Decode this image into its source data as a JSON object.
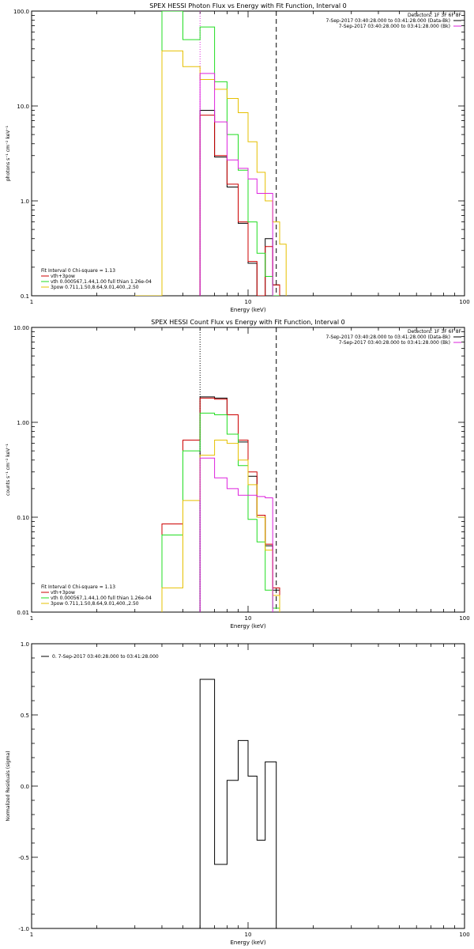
{
  "colors": {
    "black": "#000000",
    "red": "#cc0000",
    "green": "#22dd22",
    "gold": "#e6c000",
    "magenta": "#dd22dd"
  },
  "chart_data": [
    {
      "type": "line",
      "step": true,
      "title": "SPEX HESSI Photon Flux vs Energy with Fit Function, Interval 0",
      "xlabel": "Energy (keV)",
      "ylabel": "photons s⁻¹ cm⁻² keV⁻¹",
      "xscale": "log",
      "yscale": "log",
      "xlim": [
        1,
        100
      ],
      "ylim": [
        0.1,
        100
      ],
      "xtick_labels": [
        {
          "v": 1,
          "t": "1"
        },
        {
          "v": 10,
          "t": "10"
        },
        {
          "v": 100,
          "t": "100"
        }
      ],
      "ytick_labels": [
        {
          "v": 0.1,
          "t": "0.1"
        },
        {
          "v": 1,
          "t": "1.0"
        },
        {
          "v": 10,
          "t": "10.0"
        },
        {
          "v": 100,
          "t": "100.0"
        }
      ],
      "edges": [
        4.0,
        5.0,
        6.0,
        7.0,
        8.0,
        9.0,
        10.0,
        11.0,
        12.0,
        13.0,
        14.0,
        15.0
      ],
      "vlines": [
        {
          "x": 6.0,
          "style": "dotted",
          "color": "magenta"
        },
        {
          "x": 13.5,
          "style": "dashed",
          "color": "black"
        }
      ],
      "legend_tr": {
        "lines": [
          "Detectors: 1F 3F 6F 8F",
          "7-Sep-2017 03:40:28.000 to 03:41:28.000 (Data-Bk)",
          "7-Sep-2017 03:40:28.000 to 03:41:28.000 (Bk)"
        ],
        "marks": [
          null,
          "black",
          "magenta"
        ]
      },
      "legend_bl": {
        "header": "Fit Interval 0   Chi-square = 1.13",
        "lines": [
          "vth+3pow",
          "vth 0.000567,1.44,1.00  full thian 1.26e-04",
          "3pow 0.711,1.50,8.64,9.01,400.,2.50"
        ],
        "marks": [
          "red",
          "green",
          "gold"
        ]
      },
      "series": [
        {
          "color": "black",
          "start": 6.0,
          "values": [
            9.0,
            2.9,
            1.4,
            0.58,
            0.22,
            0.08,
            0.4,
            0.13
          ]
        },
        {
          "name": "vth+3pow",
          "color": "red",
          "start": 6.0,
          "values": [
            8.0,
            3.0,
            1.5,
            0.6,
            0.23,
            0.09,
            0.33,
            0.13
          ]
        },
        {
          "name": "vth 0.000567,1.44,1.00  full thian 1.26e-04",
          "color": "green",
          "start": 4.0,
          "values": [
            100,
            50,
            68,
            18,
            5.0,
            2.1,
            0.6,
            0.28,
            0.16,
            0.08
          ]
        },
        {
          "name": "3pow 0.711,1.50,8.64,9.01,400.,2.50",
          "color": "gold",
          "start": 3.0,
          "values": [
            0.1,
            38,
            26,
            19,
            15,
            12,
            8.5,
            4.2,
            2.0,
            1.0,
            0.6,
            0.35
          ]
        },
        {
          "color": "magenta",
          "start": 6.0,
          "values": [
            22,
            6.8,
            2.7,
            2.2,
            1.7,
            1.2,
            1.2
          ]
        }
      ]
    },
    {
      "type": "line",
      "step": true,
      "title": "SPEX HESSI Count Flux vs Energy with Fit Function, Interval 0",
      "xlabel": "Energy (keV)",
      "ylabel": "counts s⁻¹ cm⁻² keV⁻¹",
      "xscale": "log",
      "yscale": "log",
      "xlim": [
        1,
        100
      ],
      "ylim": [
        0.01,
        10
      ],
      "xtick_labels": [
        {
          "v": 1,
          "t": "1"
        },
        {
          "v": 10,
          "t": "10"
        },
        {
          "v": 100,
          "t": "100"
        }
      ],
      "ytick_labels": [
        {
          "v": 0.01,
          "t": "0.01"
        },
        {
          "v": 0.1,
          "t": "0.10"
        },
        {
          "v": 1,
          "t": "1.00"
        },
        {
          "v": 10,
          "t": "10.00"
        }
      ],
      "vlines": [
        {
          "x": 6.0,
          "style": "dotted",
          "color": "black"
        },
        {
          "x": 13.5,
          "style": "dashed",
          "color": "black"
        }
      ],
      "legend_tr": {
        "lines": [
          "Detectors: 1F 3F 6F 8F",
          "7-Sep-2017 03:40:28.000 to 03:41:28.000 (Data-Bk)",
          "7-Sep-2017 03:40:28.000 to 03:41:28.000 (Bk)"
        ],
        "marks": [
          null,
          "black",
          "magenta"
        ]
      },
      "legend_bl": {
        "header": "Fit Interval 0   Chi-square = 1.13",
        "lines": [
          "vth+3pow",
          "vth 0.000567,1.44,1.00  full thian 1.26e-04",
          "3pow 0.711,1.50,8.64,9.01,400.,2.50"
        ],
        "marks": [
          "red",
          "green",
          "gold"
        ]
      },
      "series": [
        {
          "color": "black",
          "start": 6.0,
          "values": [
            1.85,
            1.8,
            1.2,
            0.62,
            0.27,
            0.1,
            0.05,
            0.017
          ]
        },
        {
          "name": "vth+3pow",
          "color": "red",
          "start": 4.0,
          "values": [
            0.085,
            0.65,
            1.8,
            1.75,
            1.2,
            0.65,
            0.3,
            0.105,
            0.052,
            0.018
          ]
        },
        {
          "name": "vth 0.000567,1.44,1.00  full thian 1.26e-04",
          "color": "green",
          "start": 4.0,
          "values": [
            0.065,
            0.5,
            1.25,
            1.2,
            0.75,
            0.35,
            0.095,
            0.055,
            0.017,
            0.011
          ]
        },
        {
          "name": "3pow 0.711,1.50,8.64,9.01,400.,2.50",
          "color": "gold",
          "start": 4.0,
          "values": [
            0.018,
            0.15,
            0.45,
            0.65,
            0.6,
            0.4,
            0.22,
            0.1,
            0.045,
            0.015
          ]
        },
        {
          "color": "magenta",
          "start": 6.0,
          "values": [
            0.42,
            0.26,
            0.2,
            0.17,
            0.17,
            0.165,
            0.16
          ]
        }
      ]
    },
    {
      "type": "line",
      "step": true,
      "title": "",
      "xlabel": "Energy (keV)",
      "ylabel": "Normalized Residuals (sigma)",
      "xscale": "log",
      "yscale": "linear",
      "xlim": [
        1,
        100
      ],
      "ylim": [
        -1,
        1
      ],
      "xtick_labels": [
        {
          "v": 1,
          "t": "1"
        },
        {
          "v": 10,
          "t": "10"
        },
        {
          "v": 100,
          "t": "100"
        }
      ],
      "ytick_labels": [
        {
          "v": -1,
          "t": "-1.0"
        },
        {
          "v": -0.5,
          "t": "-0.5"
        },
        {
          "v": 0,
          "t": "0.0"
        },
        {
          "v": 0.5,
          "t": "0.5"
        },
        {
          "v": 1,
          "t": "1.0"
        }
      ],
      "legend": "0. 7-Sep-2017 03:40:28.000 to 03:41:28.000",
      "edges": [
        6.0,
        7.0,
        8.0,
        9.0,
        10.0,
        11.0,
        12.0,
        13.5
      ],
      "series": [
        {
          "name": "0. 7-Sep-2017 03:40:28.000 to 03:41:28.000",
          "color": "black",
          "values": [
            0.75,
            -0.55,
            0.04,
            0.32,
            0.07,
            -0.38,
            0.17
          ]
        }
      ]
    }
  ]
}
